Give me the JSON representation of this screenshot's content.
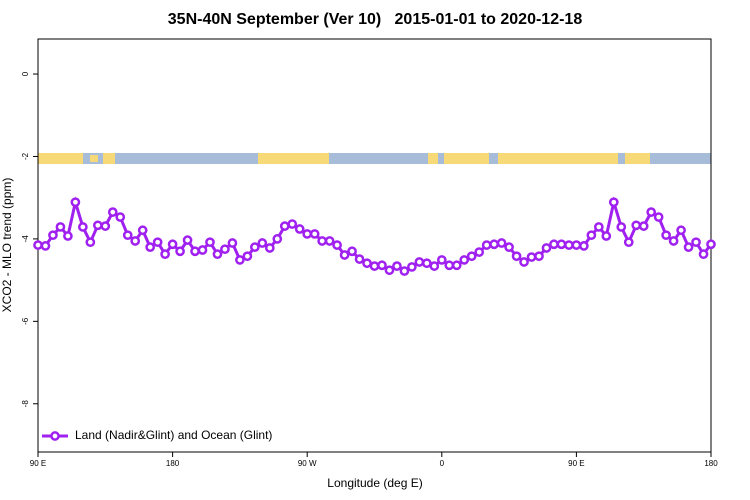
{
  "chart_data": {
    "type": "line",
    "title": "35N-40N September (Ver 10)   2015-01-01 to 2020-12-18",
    "x_label": "Longitude (deg E)",
    "y_label": "XCO2 - MLO trend (ppm)",
    "x": [
      90,
      95,
      100,
      105,
      110,
      115,
      120,
      125,
      130,
      135,
      140,
      145,
      150,
      155,
      160,
      165,
      170,
      175,
      180,
      185,
      190,
      195,
      200,
      205,
      210,
      215,
      220,
      225,
      230,
      235,
      240,
      245,
      250,
      255,
      260,
      265,
      270,
      275,
      280,
      285,
      290,
      295,
      300,
      305,
      310,
      315,
      320,
      325,
      330,
      335,
      340,
      345,
      350,
      355,
      360,
      365,
      370,
      375,
      380,
      385,
      390,
      395,
      400,
      405,
      410,
      415,
      420,
      425,
      430,
      435,
      440,
      445,
      450,
      455,
      460,
      465,
      470,
      475,
      480,
      485,
      490,
      495,
      500,
      505,
      510,
      515,
      520,
      525,
      530,
      535,
      540
    ],
    "series": [
      {
        "name": "Land (Nadir&Glint) and Ocean (Glint)",
        "color": "#a020f0",
        "values": [
          -4.15,
          -4.17,
          -3.91,
          -3.71,
          -3.93,
          -3.11,
          -3.71,
          -4.08,
          -3.67,
          -3.69,
          -3.35,
          -3.47,
          -3.91,
          -4.05,
          -3.79,
          -4.2,
          -4.08,
          -4.37,
          -4.13,
          -4.3,
          -4.03,
          -4.3,
          -4.27,
          -4.08,
          -4.37,
          -4.25,
          -4.1,
          -4.51,
          -4.42,
          -4.2,
          -4.1,
          -4.22,
          -4.0,
          -3.69,
          -3.64,
          -3.76,
          -3.88,
          -3.88,
          -4.05,
          -4.05,
          -4.15,
          -4.39,
          -4.3,
          -4.49,
          -4.59,
          -4.66,
          -4.64,
          -4.76,
          -4.66,
          -4.78,
          -4.68,
          -4.56,
          -4.59,
          -4.66,
          -4.51,
          -4.64,
          -4.64,
          -4.51,
          -4.42,
          -4.32,
          -4.15,
          -4.13,
          -4.1,
          -4.2,
          -4.42,
          -4.56,
          -4.44,
          -4.42,
          -4.22,
          -4.13,
          -4.13,
          -4.15,
          -4.15,
          -4.17,
          -3.91,
          -3.71,
          -3.93,
          -3.11,
          -3.71,
          -4.08,
          -3.67,
          -3.69,
          -3.35,
          -3.47,
          -3.91,
          -4.05,
          -3.79,
          -4.2,
          -4.08,
          -4.37,
          -4.13
        ]
      }
    ],
    "xlim": [
      90,
      540
    ],
    "xticks": [
      {
        "value": 90,
        "label": "90 E"
      },
      {
        "value": 180,
        "label": "180"
      },
      {
        "value": 270,
        "label": "90 W"
      },
      {
        "value": 360,
        "label": "0"
      },
      {
        "value": 450,
        "label": "90 E"
      },
      {
        "value": 540,
        "label": "180"
      }
    ],
    "ylim": [
      -9.17,
      0.85
    ],
    "yticks": [
      0,
      -2,
      -4,
      -6,
      -8
    ],
    "legend": "bottom-left"
  }
}
